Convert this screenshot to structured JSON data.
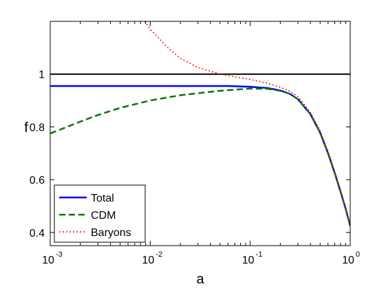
{
  "chart_data": {
    "type": "line",
    "title": "",
    "xlabel": "a",
    "ylabel": "f",
    "xscale": "log",
    "xlim": [
      0.001,
      1
    ],
    "ylim": [
      0.35,
      1.2
    ],
    "grid": false,
    "legend_position": "bottom-left",
    "x_ticks": [
      {
        "base": "10",
        "exp": "-3",
        "value": 0.001
      },
      {
        "base": "10",
        "exp": "-2",
        "value": 0.01
      },
      {
        "base": "10",
        "exp": "-1",
        "value": 0.1
      },
      {
        "base": "10",
        "exp": "0",
        "value": 1
      }
    ],
    "y_ticks": [
      {
        "label": "0.4",
        "value": 0.4
      },
      {
        "label": "0.6",
        "value": 0.6
      },
      {
        "label": "0.8",
        "value": 0.8
      },
      {
        "label": "1",
        "value": 1.0
      }
    ],
    "reference_line": {
      "y": 1.0,
      "color": "#000000"
    },
    "series": [
      {
        "name": "Total",
        "color": "#0000ff",
        "dash": "solid",
        "points": [
          [
            0.001,
            0.955
          ],
          [
            0.01,
            0.955
          ],
          [
            0.03,
            0.955
          ],
          [
            0.06,
            0.955
          ],
          [
            0.1,
            0.952
          ],
          [
            0.15,
            0.947
          ],
          [
            0.2,
            0.938
          ],
          [
            0.25,
            0.925
          ],
          [
            0.3,
            0.905
          ],
          [
            0.4,
            0.848
          ],
          [
            0.5,
            0.778
          ],
          [
            0.6,
            0.7
          ],
          [
            0.7,
            0.625
          ],
          [
            0.8,
            0.555
          ],
          [
            0.9,
            0.49
          ],
          [
            1.0,
            0.425
          ]
        ]
      },
      {
        "name": "CDM",
        "color": "#007700",
        "dash": "dashed",
        "points": [
          [
            0.001,
            0.775
          ],
          [
            0.002,
            0.82
          ],
          [
            0.003,
            0.845
          ],
          [
            0.005,
            0.872
          ],
          [
            0.01,
            0.9
          ],
          [
            0.02,
            0.92
          ],
          [
            0.05,
            0.937
          ],
          [
            0.1,
            0.945
          ],
          [
            0.15,
            0.944
          ],
          [
            0.2,
            0.937
          ],
          [
            0.25,
            0.925
          ],
          [
            0.3,
            0.905
          ],
          [
            0.4,
            0.848
          ],
          [
            0.5,
            0.778
          ],
          [
            0.6,
            0.7
          ],
          [
            0.7,
            0.625
          ],
          [
            0.8,
            0.555
          ],
          [
            0.9,
            0.49
          ],
          [
            1.0,
            0.425
          ]
        ]
      },
      {
        "name": "Baryons",
        "color": "#ff0000",
        "dash": "dotted",
        "points": [
          [
            0.0088,
            1.2
          ],
          [
            0.01,
            1.17
          ],
          [
            0.015,
            1.1
          ],
          [
            0.02,
            1.06
          ],
          [
            0.03,
            1.025
          ],
          [
            0.05,
            1.0
          ],
          [
            0.07,
            0.99
          ],
          [
            0.1,
            0.98
          ],
          [
            0.15,
            0.965
          ],
          [
            0.2,
            0.95
          ],
          [
            0.25,
            0.935
          ],
          [
            0.3,
            0.915
          ],
          [
            0.4,
            0.855
          ],
          [
            0.5,
            0.785
          ],
          [
            0.6,
            0.708
          ],
          [
            0.7,
            0.632
          ],
          [
            0.8,
            0.562
          ],
          [
            0.9,
            0.495
          ],
          [
            1.0,
            0.43
          ]
        ]
      }
    ]
  }
}
